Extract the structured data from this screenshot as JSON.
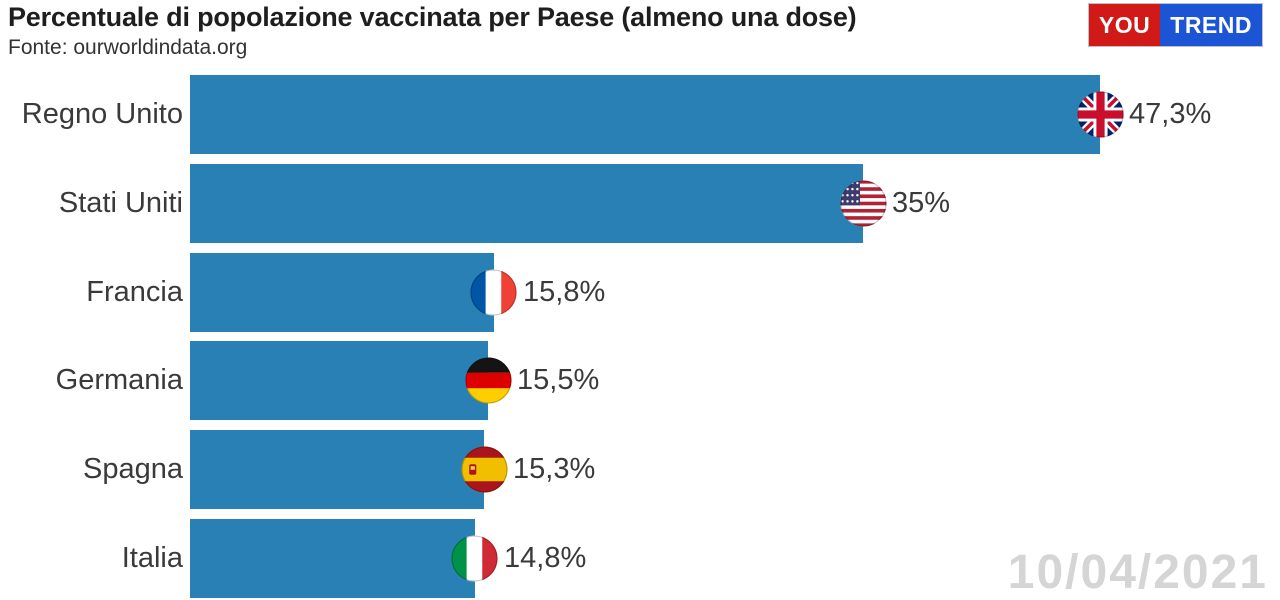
{
  "header": {
    "title": "Percentuale di popolazione vaccinata per Paese (almeno una dose)",
    "source": "Fonte: ourworldindata.org"
  },
  "logo": {
    "part1": "You",
    "part2": "Trend",
    "red": "#d11a18",
    "blue": "#1b55d6"
  },
  "watermark": {
    "date": "10/04/2021"
  },
  "chart_data": {
    "type": "bar",
    "orientation": "horizontal",
    "title": "Percentuale di popolazione vaccinata per Paese (almeno una dose)",
    "source_note": "Fonte: ourworldindata.org",
    "categories": [
      "Regno Unito",
      "Stati Uniti",
      "Francia",
      "Germania",
      "Spagna",
      "Italia"
    ],
    "values": [
      47.3,
      35,
      15.8,
      15.5,
      15.3,
      14.8
    ],
    "value_labels": [
      "47,3%",
      "35%",
      "15,8%",
      "15,5%",
      "15,3%",
      "14,8%"
    ],
    "flag_icons": [
      "uk",
      "us",
      "fr",
      "de",
      "es",
      "it"
    ],
    "bar_color": "#2980b4",
    "xlim": [
      0,
      56
    ],
    "grid": false,
    "legend": false,
    "date_label": "10/04/2021"
  }
}
